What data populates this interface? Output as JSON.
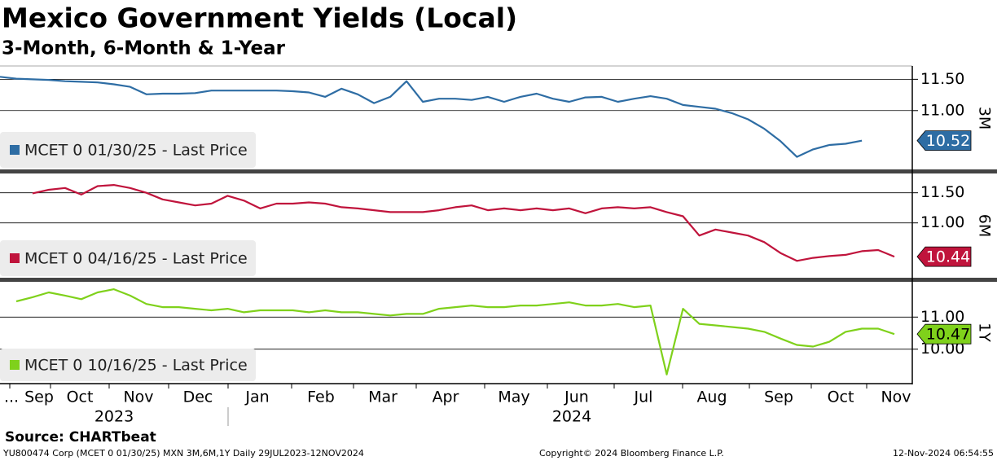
{
  "title": "Mexico Government Yields (Local)",
  "subtitle": "3-Month, 6-Month & 1-Year",
  "x_axis": {
    "months": [
      "...",
      "Sep",
      "Oct",
      "Nov",
      "Dec",
      "Jan",
      "Feb",
      "Mar",
      "Apr",
      "May",
      "Jun",
      "Jul",
      "Aug",
      "Sep",
      "Oct",
      "Nov"
    ],
    "years": [
      "2023",
      "2024"
    ]
  },
  "source": "Source: CHARTbeat",
  "footer": {
    "left": "YU800474 Corp (MCET 0 01/30/25) MXN 3M,6M,1Y  Daily 29JUL2023-12NOV2024",
    "center": "Copyright© 2024 Bloomberg Finance L.P.",
    "right": "12-Nov-2024 06:54:55"
  },
  "chart_data": [
    {
      "type": "line",
      "axis_label": "3M",
      "ylim": [
        10.06,
        11.7
      ],
      "yticks": [
        {
          "value": 11.5,
          "label": "11.50"
        },
        {
          "value": 11.0,
          "label": "11.00"
        }
      ],
      "last_price": 10.52,
      "label_text_color": "#ffffff",
      "series": [
        {
          "name": "MCET 0 01/30/25 - Last Price",
          "color": "#2e6da4",
          "values": [
            11.54,
            11.51,
            11.5,
            11.49,
            11.47,
            11.46,
            11.45,
            11.42,
            11.38,
            11.26,
            11.27,
            11.27,
            11.28,
            11.32,
            11.32,
            11.32,
            11.32,
            11.32,
            11.31,
            11.29,
            11.22,
            11.35,
            11.26,
            11.12,
            11.22,
            11.47,
            11.14,
            11.19,
            11.19,
            11.17,
            11.22,
            11.14,
            11.22,
            11.27,
            11.19,
            11.14,
            11.21,
            11.22,
            11.14,
            11.19,
            11.23,
            11.19,
            11.09,
            11.06,
            11.03,
            10.96,
            10.86,
            10.71,
            10.51,
            10.26,
            10.38,
            10.45,
            10.47,
            10.52,
            null,
            null,
            null
          ]
        }
      ]
    },
    {
      "type": "line",
      "axis_label": "6M",
      "ylim": [
        10.09,
        11.82
      ],
      "yticks": [
        {
          "value": 11.5,
          "label": "11.50"
        },
        {
          "value": 11.0,
          "label": "11.00"
        }
      ],
      "last_price": 10.44,
      "label_text_color": "#ffffff",
      "series": [
        {
          "name": "MCET 0 04/16/25 - Last Price",
          "color": "#c0143c",
          "values": [
            null,
            null,
            11.49,
            11.55,
            11.58,
            11.47,
            11.61,
            11.63,
            11.58,
            11.5,
            11.39,
            11.34,
            11.29,
            11.32,
            11.45,
            11.37,
            11.24,
            11.32,
            11.32,
            11.34,
            11.32,
            11.26,
            11.24,
            11.21,
            11.18,
            11.18,
            11.18,
            11.21,
            11.26,
            11.29,
            11.21,
            11.24,
            11.21,
            11.24,
            11.21,
            11.24,
            11.16,
            11.24,
            11.26,
            11.24,
            11.26,
            11.18,
            11.11,
            10.79,
            10.89,
            10.84,
            10.79,
            10.68,
            10.5,
            10.37,
            10.42,
            10.45,
            10.47,
            10.53,
            10.55,
            10.44,
            null
          ]
        }
      ]
    },
    {
      "type": "line",
      "axis_label": "1Y",
      "ylim": [
        8.95,
        12.1
      ],
      "yticks": [
        {
          "value": 11.0,
          "label": "11.00"
        },
        {
          "value": 10.0,
          "label": "10.00"
        }
      ],
      "last_price": 10.47,
      "label_text_color": "#000000",
      "series": [
        {
          "name": "MCET 0 10/16/25 - Last Price",
          "color": "#7fd11b",
          "values": [
            null,
            11.49,
            11.62,
            11.77,
            11.67,
            11.56,
            11.77,
            11.87,
            11.67,
            11.41,
            11.31,
            11.31,
            11.26,
            11.21,
            11.26,
            11.15,
            11.21,
            11.21,
            11.21,
            11.15,
            11.21,
            11.15,
            11.15,
            11.1,
            11.05,
            11.1,
            11.1,
            11.26,
            11.31,
            11.36,
            11.31,
            11.31,
            11.36,
            11.36,
            11.41,
            11.46,
            11.36,
            11.36,
            11.41,
            11.31,
            11.36,
            9.21,
            11.26,
            10.79,
            10.74,
            10.69,
            10.64,
            10.54,
            10.33,
            10.13,
            10.08,
            10.23,
            10.54,
            10.64,
            10.64,
            10.47,
            null
          ]
        }
      ]
    }
  ]
}
